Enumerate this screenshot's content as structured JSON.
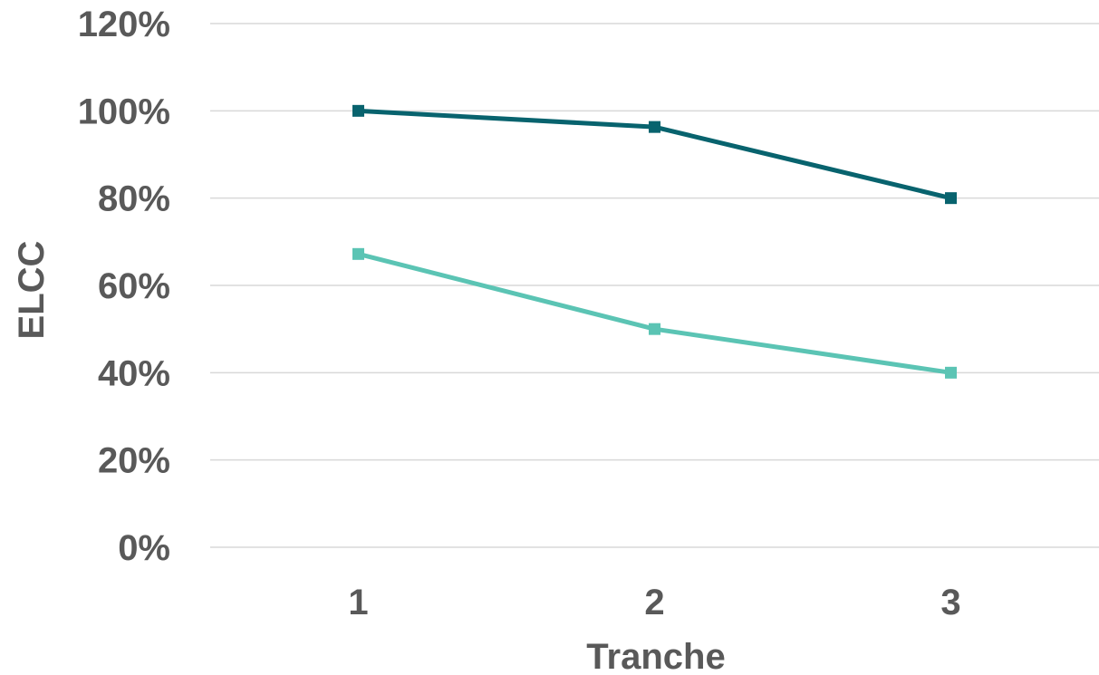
{
  "chart_data": {
    "type": "line",
    "title": "",
    "xlabel": "Tranche",
    "ylabel": "ELCC",
    "categories": [
      "1",
      "2",
      "3"
    ],
    "ylim": [
      0,
      1.2
    ],
    "y_ticks": [
      0,
      0.2,
      0.4,
      0.6,
      0.8,
      1.0,
      1.2
    ],
    "y_tick_labels": [
      "0%",
      "20%",
      "40%",
      "60%",
      "80%",
      "100%",
      "120%"
    ],
    "grid": true,
    "legend": "none",
    "series": [
      {
        "values": [
          1.0,
          0.963,
          0.8
        ],
        "color": "#08636e",
        "marker": "square"
      },
      {
        "values": [
          0.672,
          0.5,
          0.4
        ],
        "color": "#5bc4b4",
        "marker": "square"
      }
    ]
  }
}
